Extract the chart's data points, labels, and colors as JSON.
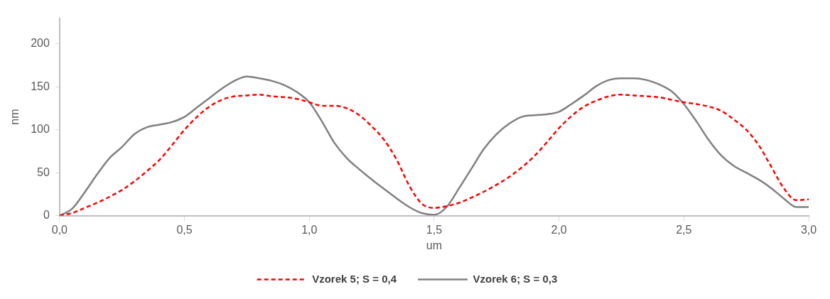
{
  "chart_data": {
    "type": "line",
    "xlabel": "um",
    "ylabel": "nm",
    "x": [
      0,
      0.05,
      0.1,
      0.15,
      0.2,
      0.25,
      0.3,
      0.35,
      0.4,
      0.45,
      0.5,
      0.55,
      0.6,
      0.65,
      0.7,
      0.75,
      0.8,
      0.85,
      0.9,
      0.95,
      1.0,
      1.05,
      1.1,
      1.15,
      1.2,
      1.25,
      1.3,
      1.35,
      1.4,
      1.45,
      1.5,
      1.55,
      1.6,
      1.65,
      1.7,
      1.75,
      1.8,
      1.85,
      1.9,
      1.95,
      2.0,
      2.05,
      2.1,
      2.15,
      2.2,
      2.25,
      2.3,
      2.35,
      2.4,
      2.45,
      2.5,
      2.55,
      2.6,
      2.65,
      2.7,
      2.75,
      2.8,
      2.85,
      2.9,
      2.95,
      3.0
    ],
    "series": [
      {
        "name": "Vzorek 5; S = 0,4",
        "color": "#ff0000",
        "line_style": "dashed",
        "values": [
          0,
          3,
          9,
          15,
          22,
          30,
          40,
          52,
          65,
          82,
          100,
          115,
          127,
          135,
          139,
          140,
          141,
          139,
          138,
          136,
          132,
          128,
          128,
          125,
          117,
          104,
          88,
          65,
          35,
          14,
          9,
          11,
          15,
          21,
          28,
          36,
          45,
          56,
          69,
          85,
          102,
          116,
          127,
          134,
          139,
          141,
          140,
          139,
          138,
          135,
          132,
          130,
          127,
          122,
          112,
          100,
          82,
          57,
          32,
          18,
          19
        ]
      },
      {
        "name": "Vzorek 6; S = 0,3",
        "color": "#808080",
        "line_style": "solid",
        "values": [
          0,
          8,
          27,
          48,
          67,
          80,
          95,
          103,
          106,
          109,
          115,
          126,
          137,
          148,
          157,
          162,
          160,
          157,
          152,
          144,
          132,
          110,
          85,
          67,
          54,
          42,
          31,
          20,
          10,
          3,
          1,
          10,
          32,
          55,
          78,
          95,
          107,
          115,
          117,
          118,
          121,
          130,
          140,
          151,
          158,
          160,
          160,
          158,
          153,
          145,
          130,
          110,
          88,
          70,
          58,
          50,
          42,
          32,
          20,
          10,
          10
        ]
      }
    ],
    "xlim": [
      0,
      3
    ],
    "xticks": [
      {
        "value": 0,
        "label": "0,0"
      },
      {
        "value": 0.5,
        "label": "0,5"
      },
      {
        "value": 1,
        "label": "1,0"
      },
      {
        "value": 1.5,
        "label": "1,5"
      },
      {
        "value": 2,
        "label": "2,0"
      },
      {
        "value": 2.5,
        "label": "2,5"
      },
      {
        "value": 3,
        "label": "3,0"
      }
    ],
    "ylim": [
      0,
      230
    ],
    "yticks": [
      0,
      50,
      100,
      150,
      200
    ],
    "grid": false,
    "legend": "bottom",
    "marker": "none"
  }
}
